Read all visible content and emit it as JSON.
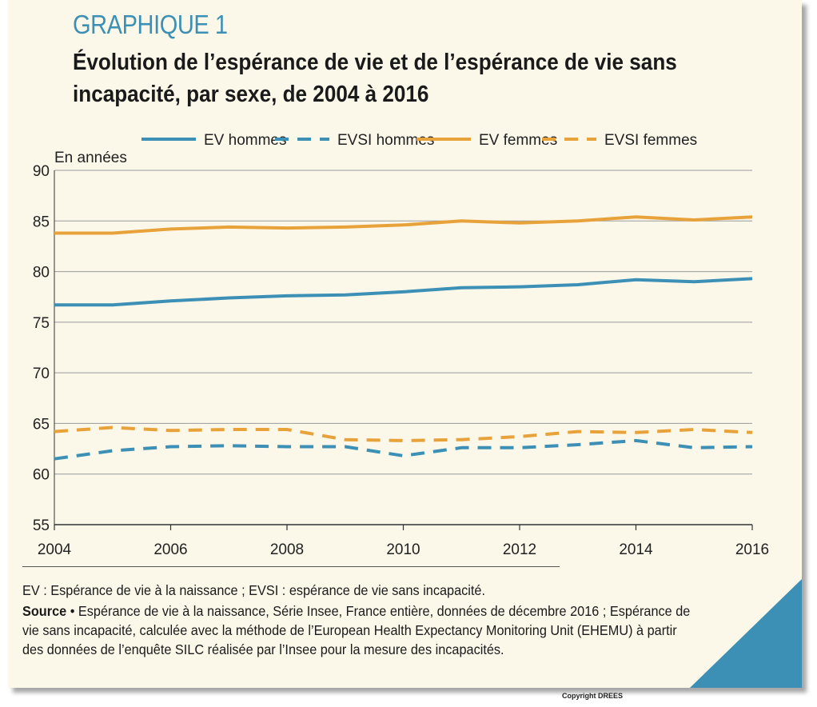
{
  "header": {
    "kicker": "GRAPHIQUE 1",
    "title": "Évolution de l’espérance de vie et de l’espérance de vie sans incapacité, par sexe, de 2004 à 2016"
  },
  "notes": {
    "definitions": "EV : Espérance de vie à la naissance ; EVSI : espérance de vie sans incapacité.",
    "source_label": "Source",
    "source_bullet": " • ",
    "source_text": "Espérance de vie à la naissance, Série Insee, France entière, données de décembre 2016 ; Espérance de vie sans incapacité, calculée avec la méthode de l’European Health Expectancy Monitoring Unit (EHEMU) à partir des données de l’enquête SILC réalisée par l’Insee pour la mesure des incapacités."
  },
  "copyright": "Copyright DREES",
  "colors": {
    "blue": "#3d90b5",
    "orange": "#e8a23a",
    "panel": "#fbf8ea",
    "grid": "#9a9a9a"
  },
  "chart_data": {
    "type": "line",
    "ylabel": "En années",
    "ylim": [
      55,
      90
    ],
    "yticks": [
      55,
      60,
      65,
      70,
      75,
      80,
      85,
      90
    ],
    "xlim": [
      2004,
      2016
    ],
    "xticks": [
      2004,
      2006,
      2008,
      2010,
      2012,
      2014,
      2016
    ],
    "x": [
      2004,
      2005,
      2006,
      2007,
      2008,
      2009,
      2010,
      2011,
      2012,
      2013,
      2014,
      2015,
      2016
    ],
    "grid": "horizontal",
    "legend_position": "top",
    "series": [
      {
        "name": "EV hommes",
        "style": "solid",
        "color": "#3d90b5",
        "values": [
          76.7,
          76.7,
          77.1,
          77.4,
          77.6,
          77.7,
          78.0,
          78.4,
          78.5,
          78.7,
          79.2,
          79.0,
          79.3
        ]
      },
      {
        "name": "EVSI hommes",
        "style": "dashed",
        "color": "#3d90b5",
        "values": [
          61.5,
          62.3,
          62.7,
          62.8,
          62.7,
          62.7,
          61.8,
          62.6,
          62.6,
          62.9,
          63.3,
          62.6,
          62.7
        ]
      },
      {
        "name": "EV femmes",
        "style": "solid",
        "color": "#e8a23a",
        "values": [
          83.8,
          83.8,
          84.2,
          84.4,
          84.3,
          84.4,
          84.6,
          85.0,
          84.8,
          85.0,
          85.4,
          85.1,
          85.4
        ]
      },
      {
        "name": "EVSI femmes",
        "style": "dashed",
        "color": "#e8a23a",
        "values": [
          64.2,
          64.6,
          64.3,
          64.4,
          64.4,
          63.4,
          63.3,
          63.4,
          63.7,
          64.2,
          64.1,
          64.4,
          64.1
        ]
      }
    ]
  }
}
